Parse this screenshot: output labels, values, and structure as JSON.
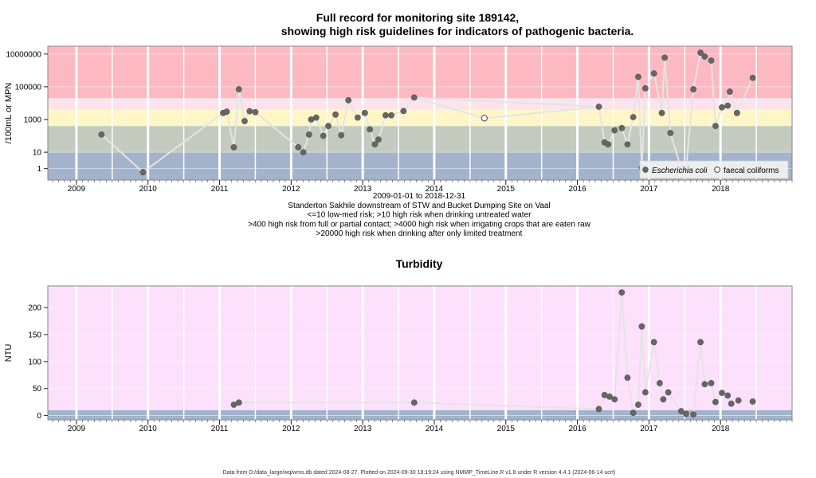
{
  "chart_data": [
    {
      "type": "scatter",
      "title_line1": "Full record for monitoring site 189142,",
      "title_line2": "showing high risk guidelines for indicators of pathogenic bacteria.",
      "ylabel": "/100mL or MPN",
      "yscale": "log",
      "ylim": [
        0.2,
        30000000
      ],
      "xlim": [
        2008.6,
        2019.0
      ],
      "x_ticks": [
        "2009",
        "2010",
        "2011",
        "2012",
        "2013",
        "2014",
        "2015",
        "2016",
        "2017",
        "2018"
      ],
      "y_ticks": [
        "1",
        "10",
        "1000",
        "100000",
        "10000000"
      ],
      "y_tick_values": [
        1,
        10,
        1000,
        100000,
        10000000
      ],
      "bands": [
        {
          "from": 0.2,
          "to": 10,
          "color": "#a2b3cb"
        },
        {
          "from": 10,
          "to": 400,
          "color": "#c3cbbf"
        },
        {
          "from": 400,
          "to": 4000,
          "color": "#fef6c6"
        },
        {
          "from": 4000,
          "to": 20000,
          "color": "#fce4ec"
        },
        {
          "from": 20000,
          "to": 30000000,
          "color": "#fcb9c1"
        }
      ],
      "caption": [
        "2009-01-01 to 2018-12-31",
        "Standerton Sakhile downstream of STW and Bucket Dumping Site on Vaal",
        "<=10 low-med risk; >10 high risk when drinking untreated water",
        ">400 high risk from full or partial contact; >4000 high risk when irrigating crops that are eaten raw",
        ">20000 high risk when drinking after only limited treatment"
      ],
      "legend": {
        "position": "bottom-right",
        "entries": [
          {
            "name": "Escherichia coli",
            "marker": "filled"
          },
          {
            "name": "faecal coliforms",
            "marker": "open"
          }
        ]
      },
      "series": [
        {
          "name": "Escherichia coli",
          "points": [
            [
              2009.35,
              120
            ],
            [
              2009.93,
              0.6
            ],
            [
              2011.05,
              2500
            ],
            [
              2011.1,
              3000
            ],
            [
              2011.2,
              20
            ],
            [
              2011.27,
              70000
            ],
            [
              2011.35,
              800
            ],
            [
              2011.42,
              3200
            ],
            [
              2011.5,
              2800
            ],
            [
              2012.1,
              20
            ],
            [
              2012.17,
              10
            ],
            [
              2012.25,
              120
            ],
            [
              2012.28,
              1000
            ],
            [
              2012.35,
              1300
            ],
            [
              2012.45,
              100
            ],
            [
              2012.52,
              400
            ],
            [
              2012.62,
              2000
            ],
            [
              2012.7,
              110
            ],
            [
              2012.8,
              15000
            ],
            [
              2012.93,
              1300
            ],
            [
              2013.03,
              2500
            ],
            [
              2013.1,
              250
            ],
            [
              2013.17,
              30
            ],
            [
              2013.22,
              60
            ],
            [
              2013.32,
              1800
            ],
            [
              2013.4,
              1800
            ],
            [
              2013.57,
              3300
            ],
            [
              2013.72,
              22000
            ],
            [
              2016.3,
              6000
            ],
            [
              2016.38,
              40
            ],
            [
              2016.43,
              30
            ],
            [
              2016.52,
              220
            ],
            [
              2016.62,
              300
            ],
            [
              2016.7,
              30
            ],
            [
              2016.78,
              1400
            ],
            [
              2016.85,
              400000
            ],
            [
              2016.9,
              1.1
            ],
            [
              2016.95,
              80000
            ],
            [
              2017.07,
              650000
            ],
            [
              2017.18,
              2500
            ],
            [
              2017.22,
              6000000
            ],
            [
              2017.3,
              150
            ],
            [
              2017.45,
              1
            ],
            [
              2017.52,
              1
            ],
            [
              2017.62,
              70000
            ],
            [
              2017.72,
              12000000
            ],
            [
              2017.78,
              7000000
            ],
            [
              2017.87,
              4000000
            ],
            [
              2017.93,
              400
            ],
            [
              2018.02,
              5500
            ],
            [
              2018.1,
              7000
            ],
            [
              2018.13,
              50000
            ],
            [
              2018.23,
              2500
            ],
            [
              2018.45,
              350000
            ]
          ]
        },
        {
          "name": "faecal coliforms",
          "points": [
            [
              2014.7,
              1200
            ]
          ]
        }
      ]
    },
    {
      "type": "scatter",
      "title": "Turbidity",
      "ylabel": "NTU",
      "ylim": [
        -8,
        240
      ],
      "xlim": [
        2008.6,
        2019.0
      ],
      "x_ticks": [
        "2009",
        "2010",
        "2011",
        "2012",
        "2013",
        "2014",
        "2015",
        "2016",
        "2017",
        "2018"
      ],
      "y_ticks": [
        "0",
        "50",
        "100",
        "150",
        "200"
      ],
      "y_tick_values": [
        0,
        50,
        100,
        150,
        200
      ],
      "bands": [
        {
          "from": -8,
          "to": 10,
          "color": "#a2b3cb"
        },
        {
          "from": 10,
          "to": 240,
          "color": "#fde0fc"
        }
      ],
      "series": [
        {
          "name": "Turbidity",
          "points": [
            [
              2011.2,
              20
            ],
            [
              2011.27,
              24
            ],
            [
              2013.72,
              24
            ],
            [
              2016.3,
              12
            ],
            [
              2016.38,
              38
            ],
            [
              2016.45,
              35
            ],
            [
              2016.52,
              30
            ],
            [
              2016.62,
              228
            ],
            [
              2016.7,
              70
            ],
            [
              2016.78,
              5
            ],
            [
              2016.85,
              20
            ],
            [
              2016.9,
              165
            ],
            [
              2016.95,
              43
            ],
            [
              2017.07,
              136
            ],
            [
              2017.15,
              60
            ],
            [
              2017.2,
              30
            ],
            [
              2017.27,
              43
            ],
            [
              2017.45,
              8
            ],
            [
              2017.52,
              3
            ],
            [
              2017.62,
              2
            ],
            [
              2017.72,
              136
            ],
            [
              2017.78,
              58
            ],
            [
              2017.87,
              60
            ],
            [
              2017.93,
              25
            ],
            [
              2018.02,
              42
            ],
            [
              2018.1,
              37
            ],
            [
              2018.15,
              22
            ],
            [
              2018.25,
              28
            ],
            [
              2018.45,
              26
            ]
          ]
        }
      ]
    }
  ],
  "footer": "Data from D:/data_large/wq/wms.db dated 2024-08-27. Plotted on 2024-09-30 18:19:24 using NMMP_TimeLine.R v1.8 under R version 4.4.1 (2024-06-14 ucrt)"
}
